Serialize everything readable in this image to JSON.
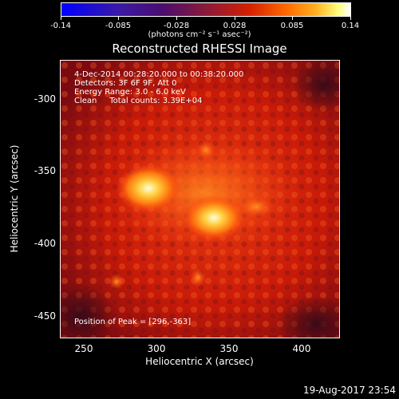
{
  "colorbar": {
    "ticks": [
      "-0.14",
      "-0.085",
      "-0.028",
      "0.028",
      "0.085",
      "0.14"
    ],
    "units": "(photons cm⁻² s⁻¹ asec⁻²)"
  },
  "title": "Reconstructed RHESSI Image",
  "info": {
    "time": "4-Dec-2014 00:28:20.000 to 00:38:20.000",
    "detectors": "Detectors: 3F 6F 9F, Att 0",
    "energy": "Energy Range: 3.0 - 6.0 keV",
    "clean": "Clean     Total counts: 3.39E+04",
    "peak": "Position of Peak = [296,-363]"
  },
  "axes": {
    "xlabel": "Heliocentric X (arcsec)",
    "ylabel": "Heliocentric Y (arcsec)",
    "xticks": [
      "250",
      "300",
      "350",
      "400"
    ],
    "yticks": [
      "-300",
      "-350",
      "-400",
      "-450"
    ]
  },
  "timestamp": "19-Aug-2017 23:54",
  "colors": {
    "background": "#000000",
    "foreground": "#ffffff"
  }
}
